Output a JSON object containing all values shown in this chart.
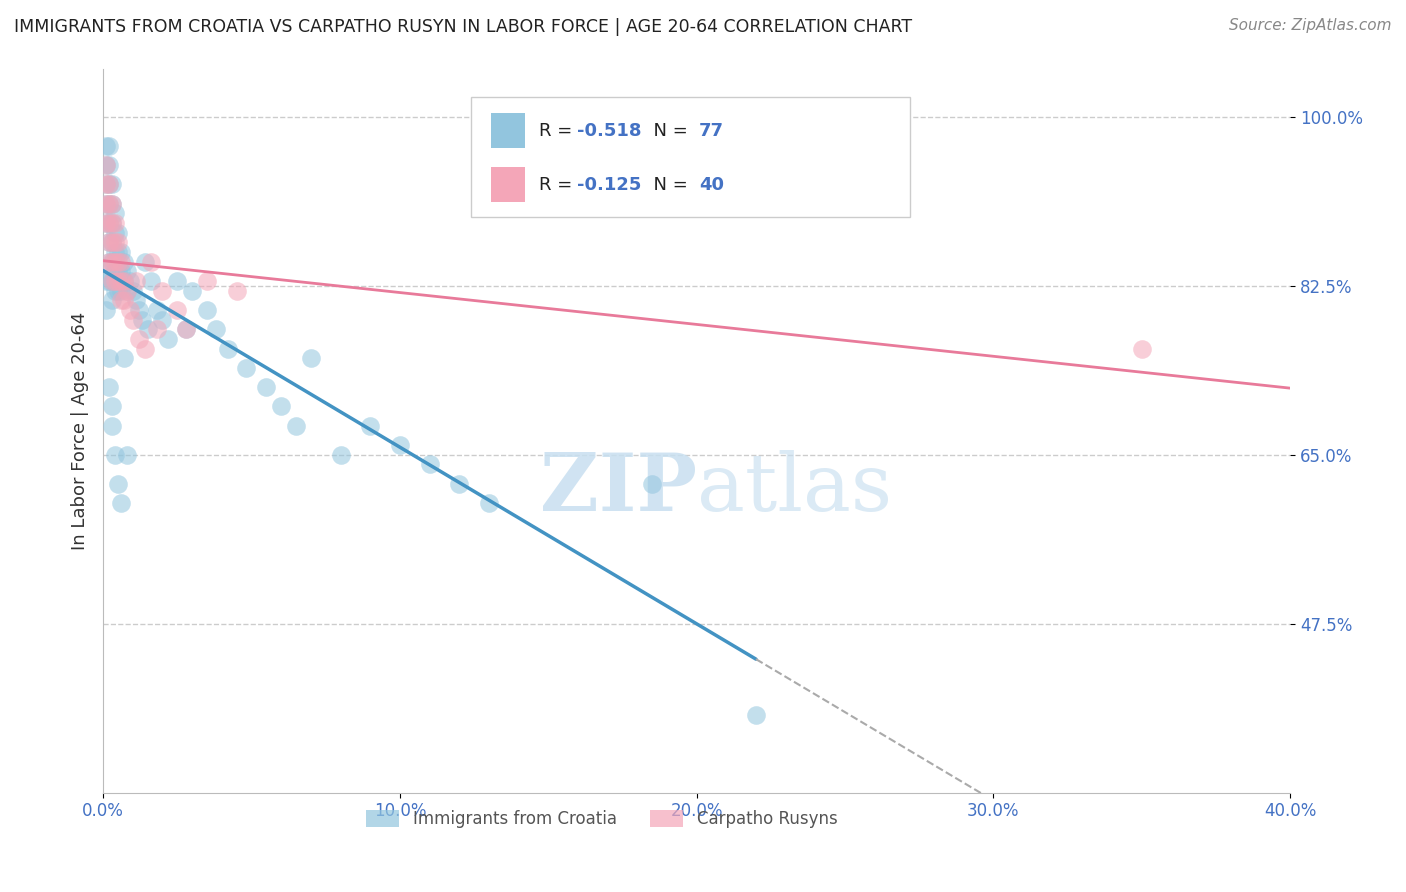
{
  "title": "IMMIGRANTS FROM CROATIA VS CARPATHO RUSYN IN LABOR FORCE | AGE 20-64 CORRELATION CHART",
  "source": "Source: ZipAtlas.com",
  "ylabel": "In Labor Force | Age 20-64",
  "legend_entry1": "Immigrants from Croatia",
  "legend_entry2": "Carpatho Rusyns",
  "r1": -0.518,
  "n1": 77,
  "r2": -0.125,
  "n2": 40,
  "color1": "#92c5de",
  "color2": "#f4a6b8",
  "line_color1": "#4393c3",
  "line_color2": "#e87a9a",
  "xlim": [
    0.0,
    0.4
  ],
  "ylim": [
    0.3,
    1.05
  ],
  "yticks": [
    0.475,
    0.65,
    0.825,
    1.0
  ],
  "ytick_labels": [
    "47.5%",
    "65.0%",
    "82.5%",
    "100.0%"
  ],
  "xticks": [
    0.0,
    0.1,
    0.2,
    0.3,
    0.4
  ],
  "xtick_labels": [
    "0.0%",
    "10.0%",
    "20.0%",
    "30.0%",
    "40.0%"
  ],
  "watermark_zip": "ZIP",
  "watermark_atlas": "atlas",
  "croatia_x": [
    0.001,
    0.001,
    0.001,
    0.001,
    0.001,
    0.002,
    0.002,
    0.002,
    0.002,
    0.002,
    0.002,
    0.002,
    0.002,
    0.003,
    0.003,
    0.003,
    0.003,
    0.003,
    0.003,
    0.003,
    0.004,
    0.004,
    0.004,
    0.004,
    0.004,
    0.005,
    0.005,
    0.005,
    0.005,
    0.006,
    0.006,
    0.006,
    0.007,
    0.007,
    0.008,
    0.008,
    0.009,
    0.01,
    0.011,
    0.012,
    0.013,
    0.014,
    0.015,
    0.016,
    0.018,
    0.02,
    0.022,
    0.025,
    0.028,
    0.03,
    0.035,
    0.038,
    0.042,
    0.048,
    0.055,
    0.06,
    0.065,
    0.07,
    0.08,
    0.09,
    0.1,
    0.11,
    0.12,
    0.13,
    0.001,
    0.001,
    0.002,
    0.002,
    0.003,
    0.003,
    0.004,
    0.005,
    0.006,
    0.007,
    0.008,
    0.185,
    0.22
  ],
  "croatia_y": [
    0.97,
    0.95,
    0.93,
    0.91,
    0.89,
    0.97,
    0.95,
    0.93,
    0.91,
    0.89,
    0.87,
    0.85,
    0.83,
    0.93,
    0.91,
    0.89,
    0.87,
    0.85,
    0.83,
    0.81,
    0.9,
    0.88,
    0.86,
    0.84,
    0.82,
    0.88,
    0.86,
    0.84,
    0.82,
    0.86,
    0.84,
    0.82,
    0.85,
    0.83,
    0.84,
    0.82,
    0.83,
    0.82,
    0.81,
    0.8,
    0.79,
    0.85,
    0.78,
    0.83,
    0.8,
    0.79,
    0.77,
    0.83,
    0.78,
    0.82,
    0.8,
    0.78,
    0.76,
    0.74,
    0.72,
    0.7,
    0.68,
    0.75,
    0.65,
    0.68,
    0.66,
    0.64,
    0.62,
    0.6,
    0.83,
    0.8,
    0.75,
    0.72,
    0.7,
    0.68,
    0.65,
    0.62,
    0.6,
    0.75,
    0.65,
    0.62,
    0.38
  ],
  "rusyn_x": [
    0.001,
    0.001,
    0.001,
    0.001,
    0.002,
    0.002,
    0.002,
    0.002,
    0.002,
    0.003,
    0.003,
    0.003,
    0.003,
    0.003,
    0.004,
    0.004,
    0.004,
    0.004,
    0.005,
    0.005,
    0.005,
    0.006,
    0.006,
    0.006,
    0.007,
    0.007,
    0.008,
    0.009,
    0.01,
    0.011,
    0.012,
    0.014,
    0.016,
    0.018,
    0.02,
    0.025,
    0.028,
    0.035,
    0.045,
    0.35
  ],
  "rusyn_y": [
    0.95,
    0.93,
    0.91,
    0.89,
    0.93,
    0.91,
    0.89,
    0.87,
    0.85,
    0.91,
    0.89,
    0.87,
    0.85,
    0.83,
    0.89,
    0.87,
    0.85,
    0.83,
    0.87,
    0.85,
    0.83,
    0.85,
    0.83,
    0.81,
    0.83,
    0.81,
    0.82,
    0.8,
    0.79,
    0.83,
    0.77,
    0.76,
    0.85,
    0.78,
    0.82,
    0.8,
    0.78,
    0.83,
    0.82,
    0.76
  ]
}
